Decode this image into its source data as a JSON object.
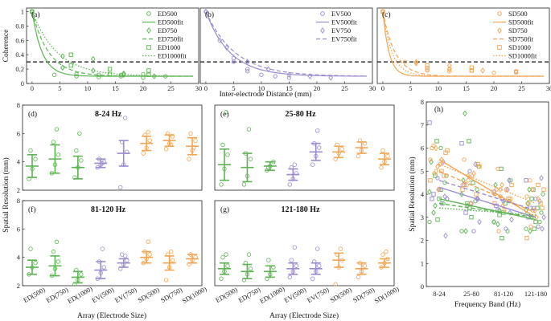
{
  "colors": {
    "ED": "#5bb450",
    "EV": "#9b8ad0",
    "SD": "#f5a451",
    "thr": "#111111"
  },
  "chart_data": [
    {
      "type": "scatter",
      "group": "ED",
      "panel_label": "(a)",
      "ylabel": "Coherence",
      "xlabel": "",
      "xlim": [
        -1,
        30
      ],
      "ylim": [
        0,
        1.05
      ],
      "xticks": [
        "0",
        "5",
        "10",
        "15",
        "20",
        "25",
        "30"
      ],
      "yticks": [
        "0",
        "0.2",
        "0.4",
        "0.6",
        "0.8",
        "1"
      ],
      "threshold": 0.3,
      "legend": [
        "ED500",
        "ED500fit",
        "ED750",
        "ED750fit",
        "ED1000",
        "ED1000fit"
      ],
      "series": [
        {
          "name": "ED500",
          "style": "solid",
          "marker": "circle",
          "x": [
            0,
            4,
            8,
            8,
            12,
            12,
            16,
            16,
            20,
            20,
            24
          ],
          "y": [
            1.0,
            0.12,
            0.1,
            0.13,
            0.12,
            0.09,
            0.12,
            0.1,
            0.08,
            0.13,
            0.1
          ],
          "fit": [
            1.0,
            0.55
          ]
        },
        {
          "name": "ED750",
          "style": "dashed",
          "marker": "diamond",
          "x": [
            0,
            5.5,
            5.5,
            11,
            11,
            16.5,
            16.5,
            22
          ],
          "y": [
            1.0,
            0.38,
            0.22,
            0.34,
            0.18,
            0.14,
            0.12,
            0.1
          ],
          "fit": [
            1.0,
            0.33
          ]
        },
        {
          "name": "ED1000",
          "style": "dotted",
          "marker": "square",
          "x": [
            0,
            7,
            7,
            14,
            14,
            21,
            21
          ],
          "y": [
            1.0,
            0.4,
            0.25,
            0.2,
            0.13,
            0.18,
            0.12
          ],
          "fit": [
            1.0,
            0.22
          ]
        }
      ]
    },
    {
      "type": "scatter",
      "group": "EV",
      "panel_label": "(b)",
      "xlim": [
        -1,
        30
      ],
      "ylim": [
        0,
        1.05
      ],
      "xticks": [
        "0",
        "5",
        "10",
        "15",
        "20",
        "25",
        "30"
      ],
      "threshold": 0.3,
      "legend": [
        "EV500",
        "EV500fit",
        "EV750",
        "EV750fit"
      ],
      "series": [
        {
          "name": "EV500",
          "style": "solid",
          "marker": "circle",
          "x": [
            0,
            2.5,
            5,
            5,
            7.5,
            7.5,
            10,
            12.5,
            15
          ],
          "y": [
            1.0,
            0.6,
            0.35,
            0.3,
            0.2,
            0.17,
            0.12,
            0.1,
            0.08
          ],
          "fit": [
            1.0,
            0.23
          ]
        },
        {
          "name": "EV750",
          "style": "dashed",
          "marker": "diamond",
          "x": [
            0,
            3.75,
            7.5,
            11.25,
            15,
            18.75,
            22.5
          ],
          "y": [
            1.0,
            0.5,
            0.3,
            0.2,
            0.12,
            0.1,
            0.08
          ],
          "fit": [
            1.0,
            0.19
          ]
        }
      ]
    },
    {
      "type": "scatter",
      "group": "SD",
      "panel_label": "(c)",
      "xlim": [
        -1,
        30
      ],
      "ylim": [
        0,
        1.05
      ],
      "xticks": [
        "0",
        "5",
        "10",
        "15",
        "20",
        "25",
        "30"
      ],
      "threshold": 0.3,
      "legend": [
        "SD500",
        "SD500fit",
        "SD750",
        "SD750fit",
        "SD1000",
        "SD1000fit"
      ],
      "series": [
        {
          "name": "SD500",
          "style": "solid",
          "marker": "circle",
          "x": [
            0,
            4,
            8,
            8,
            12,
            12,
            16,
            20,
            24
          ],
          "y": [
            1.0,
            0.3,
            0.18,
            0.22,
            0.2,
            0.17,
            0.18,
            0.15,
            0.17
          ],
          "fit": [
            1.0,
            0.9
          ]
        },
        {
          "name": "SD750",
          "style": "dashed",
          "marker": "diamond",
          "x": [
            0,
            6,
            6,
            12,
            12,
            18,
            24
          ],
          "y": [
            1.0,
            0.3,
            0.28,
            0.2,
            0.25,
            0.18,
            0.16
          ],
          "fit": [
            1.0,
            0.45
          ]
        },
        {
          "name": "SD1000",
          "style": "dotted",
          "marker": "square",
          "x": [
            0,
            8,
            8,
            16,
            16,
            24
          ],
          "y": [
            1.0,
            0.25,
            0.2,
            0.18,
            0.22,
            0.16
          ],
          "fit": [
            1.0,
            0.6
          ]
        }
      ]
    },
    {
      "type": "errorbar",
      "panels": [
        {
          "label": "(d)",
          "band": "8-24 Hz"
        },
        {
          "label": "(e)",
          "band": "25-80 Hz"
        },
        {
          "label": "(f)",
          "band": "81-120 Hz"
        },
        {
          "label": "(g)",
          "band": "121-180 Hz"
        }
      ],
      "categories": [
        "ED(500)",
        "ED(750)",
        "ED(1000)",
        "EV(500)",
        "EV(750)",
        "SD(500)",
        "SD(750)",
        "SD(1000)"
      ],
      "ylim": [
        2,
        8
      ],
      "yticks": [
        "2",
        "4",
        "6",
        "8"
      ],
      "xlabel": "Array (Electrode Size)",
      "ylabel": "Spatial Resolution (mm)",
      "data": [
        {
          "mean": [
            3.7,
            4.2,
            3.6,
            3.9,
            4.6,
            5.3,
            5.5,
            5.1
          ],
          "sd": [
            0.8,
            1.0,
            0.8,
            0.3,
            0.9,
            0.5,
            0.4,
            0.6
          ],
          "pts": [
            [
              2.8,
              3.5,
              4.2,
              4.8
            ],
            [
              3.2,
              3.8,
              4.5,
              5.4,
              6.3
            ],
            [
              2.9,
              3.6,
              4.1,
              4.8,
              6.0
            ],
            [
              3.6,
              3.8,
              4.0,
              4.2,
              3.9
            ],
            [
              2.2,
              3.8,
              4.7,
              5.4,
              7.1
            ],
            [
              4.6,
              5.0,
              5.5,
              5.9,
              6.1
            ],
            [
              4.9,
              5.3,
              5.8,
              6.0,
              5.2
            ],
            [
              4.2,
              4.8,
              5.5,
              6.0,
              5.0
            ]
          ]
        },
        {
          "mean": [
            3.8,
            3.6,
            3.7,
            3.1,
            4.7,
            4.7,
            5.0,
            4.2
          ],
          "sd": [
            1.1,
            1.0,
            0.3,
            0.4,
            0.6,
            0.4,
            0.4,
            0.4
          ],
          "pts": [
            [
              2.4,
              3.5,
              4.5,
              5.2,
              7.5
            ],
            [
              2.4,
              3.0,
              4.2,
              4.6,
              6.3
            ],
            [
              3.4,
              3.7,
              4.0,
              3.6
            ],
            [
              2.4,
              2.8,
              3.2,
              3.6,
              3.8
            ],
            [
              3.8,
              4.4,
              5.0,
              5.3,
              6.2
            ],
            [
              4.2,
              4.6,
              4.9,
              5.2
            ],
            [
              4.4,
              4.8,
              5.3,
              5.5
            ],
            [
              3.6,
              4.0,
              4.4,
              4.8
            ]
          ]
        },
        {
          "mean": [
            3.3,
            3.4,
            2.6,
            3.1,
            3.6,
            4.0,
            3.6,
            3.9
          ],
          "sd": [
            0.5,
            0.7,
            0.4,
            0.6,
            0.3,
            0.4,
            0.5,
            0.3
          ],
          "pts": [
            [
              2.8,
              3.3,
              3.6,
              4.6
            ],
            [
              2.7,
              3.2,
              3.7,
              4.4,
              5.1
            ],
            [
              2.1,
              2.4,
              2.8,
              3.1
            ],
            [
              2.5,
              2.9,
              3.3,
              3.7,
              4.6
            ],
            [
              3.2,
              3.5,
              3.8,
              4.2,
              4.1
            ],
            [
              3.6,
              3.9,
              4.2,
              4.4,
              5.1
            ],
            [
              2.4,
              3.3,
              3.8,
              4.2,
              4.4
            ],
            [
              3.5,
              3.8,
              4.0,
              4.2
            ]
          ]
        },
        {
          "mean": [
            3.2,
            3.0,
            3.0,
            3.2,
            3.2,
            3.8,
            3.2,
            3.6
          ],
          "sd": [
            0.4,
            0.5,
            0.4,
            0.4,
            0.4,
            0.5,
            0.4,
            0.3
          ],
          "pts": [
            [
              2.5,
              3.0,
              3.4,
              4.0,
              4.2
            ],
            [
              2.4,
              2.8,
              3.2,
              3.6,
              4.2
            ],
            [
              2.5,
              2.8,
              3.3,
              3.8
            ],
            [
              2.6,
              3.0,
              3.4,
              3.8,
              4.7
            ],
            [
              2.5,
              3.0,
              3.4,
              3.7,
              4.6
            ],
            [
              2.1,
              3.3,
              3.8,
              4.2,
              4.6
            ],
            [
              2.6,
              3.0,
              3.4,
              3.6
            ],
            [
              3.3,
              3.6,
              3.9,
              4.2,
              4.4
            ]
          ]
        }
      ]
    },
    {
      "type": "scatter",
      "panel_label": "(h)",
      "categories": [
        "8-24",
        "25-80",
        "81-120",
        "121-180"
      ],
      "xlabel": "Frequency Band (Hz)",
      "ylabel": "Spatial Resolution (mm)",
      "ylim": [
        0,
        8
      ],
      "yticks": [
        "0",
        "1",
        "2",
        "3",
        "4",
        "5",
        "6",
        "7",
        "8"
      ],
      "trend": [
        {
          "group": "SD",
          "style": "solid",
          "y": [
            5.5,
            3.0
          ]
        },
        {
          "group": "SD",
          "style": "dotted",
          "y": [
            5.3,
            3.6
          ]
        },
        {
          "group": "SD",
          "style": "dashed",
          "y": [
            5.0,
            3.2
          ]
        },
        {
          "group": "EV",
          "style": "solid",
          "y": [
            4.3,
            3.0
          ]
        },
        {
          "group": "EV",
          "style": "dashed",
          "y": [
            4.6,
            3.3
          ]
        },
        {
          "group": "ED",
          "style": "solid",
          "y": [
            3.8,
            2.9
          ]
        },
        {
          "group": "ED",
          "style": "dashed",
          "y": [
            3.6,
            3.0
          ]
        },
        {
          "group": "ED",
          "style": "dotted",
          "y": [
            3.4,
            3.1
          ]
        }
      ]
    }
  ],
  "labels": {
    "coh_xlabel": "Inter-electrode Distance (mm)",
    "h_points_note": ""
  }
}
